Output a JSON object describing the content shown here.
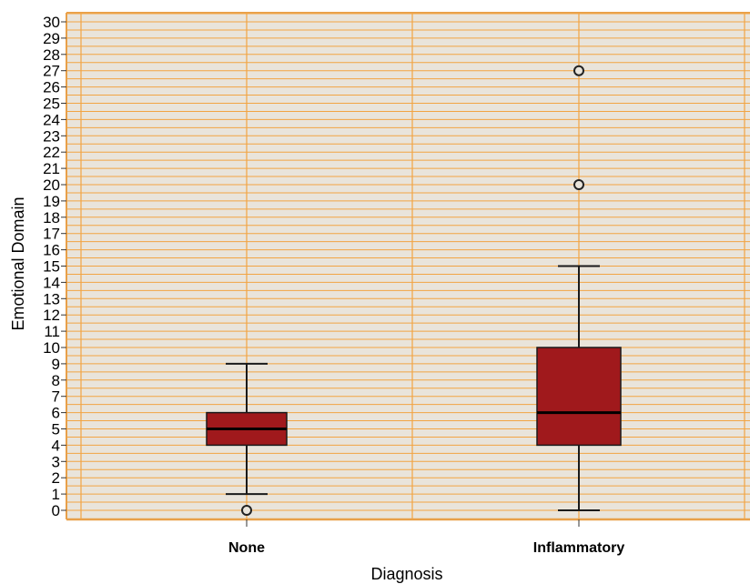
{
  "chart_data": {
    "type": "box",
    "xlabel": "Diagnosis",
    "ylabel": "Emotional Domain",
    "ylim": [
      0,
      30
    ],
    "yticks": [
      "0",
      "1",
      "2",
      "3",
      "4",
      "5",
      "6",
      "7",
      "8",
      "9",
      "10",
      "11",
      "12",
      "13",
      "14",
      "15",
      "16",
      "17",
      "18",
      "19",
      "20",
      "21",
      "22",
      "23",
      "24",
      "25",
      "26",
      "27",
      "28",
      "29",
      "30"
    ],
    "grid": true,
    "categories": [
      "None",
      "Inflammatory"
    ],
    "boxes": [
      {
        "category": "None",
        "whisker_low": 1,
        "q1": 4,
        "median": 5,
        "q3": 6,
        "whisker_high": 9,
        "outliers": [
          0
        ]
      },
      {
        "category": "Inflammatory",
        "whisker_low": 0,
        "q1": 4,
        "median": 6,
        "q3": 10,
        "whisker_high": 15,
        "outliers": [
          20,
          27
        ]
      }
    ],
    "colors": {
      "plot_background": "#e9e4db",
      "gridline": "#f2a443",
      "box_fill": "#a0191c",
      "box_stroke": "#1a1a1a",
      "axis": "#e8a04a"
    }
  }
}
